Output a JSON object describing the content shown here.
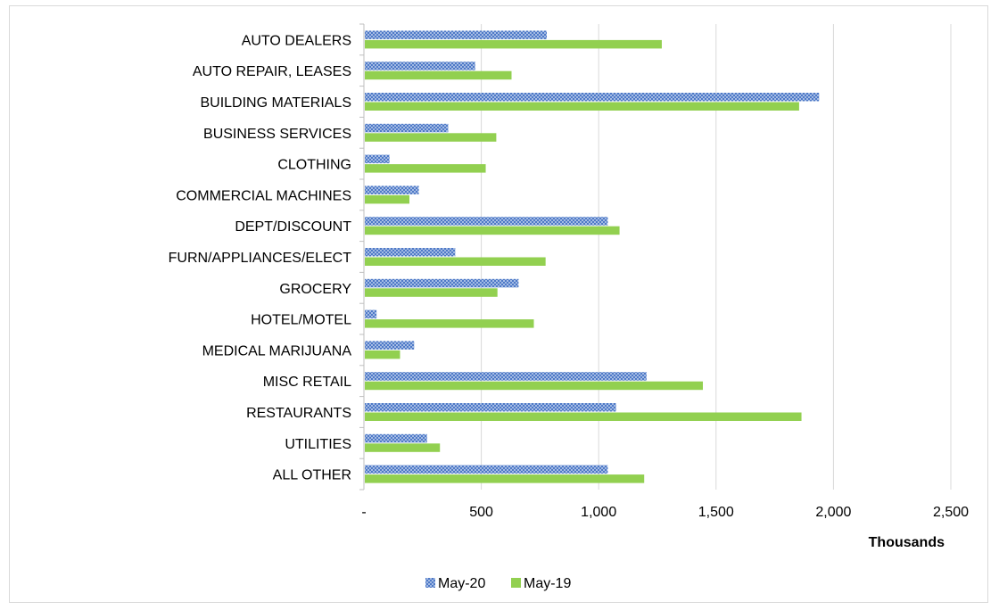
{
  "chart_data": {
    "type": "bar",
    "orientation": "horizontal",
    "categories": [
      "AUTO DEALERS",
      "AUTO REPAIR, LEASES",
      "BUILDING MATERIALS",
      "BUSINESS SERVICES",
      "CLOTHING",
      "COMMERCIAL MACHINES",
      "DEPT/DISCOUNT",
      "FURN/APPLIANCES/ELECT",
      "GROCERY",
      "HOTEL/MOTEL",
      "MEDICAL MARIJUANA",
      "MISC RETAIL",
      "RESTAURANTS",
      "UTILITIES",
      "ALL OTHER"
    ],
    "series": [
      {
        "name": "May-20",
        "color": "#4472c4",
        "pattern": "crosshatch",
        "values": [
          775,
          470,
          1935,
          355,
          105,
          230,
          1035,
          385,
          655,
          50,
          210,
          1200,
          1070,
          265,
          1035
        ]
      },
      {
        "name": "May-19",
        "color": "#92d050",
        "pattern": "solid",
        "values": [
          1265,
          625,
          1850,
          560,
          515,
          190,
          1085,
          770,
          565,
          720,
          150,
          1440,
          1860,
          320,
          1190
        ]
      }
    ],
    "xlim": [
      0,
      2500
    ],
    "xticks": [
      0,
      500,
      1000,
      1500,
      2000,
      2500
    ],
    "xtick_labels": [
      "-",
      "500",
      "1,000",
      "1,500",
      "2,000",
      "2,500"
    ],
    "xlabel": "Thousands",
    "ylabel": "",
    "title": "",
    "grid": "vertical",
    "legend_position": "bottom"
  }
}
